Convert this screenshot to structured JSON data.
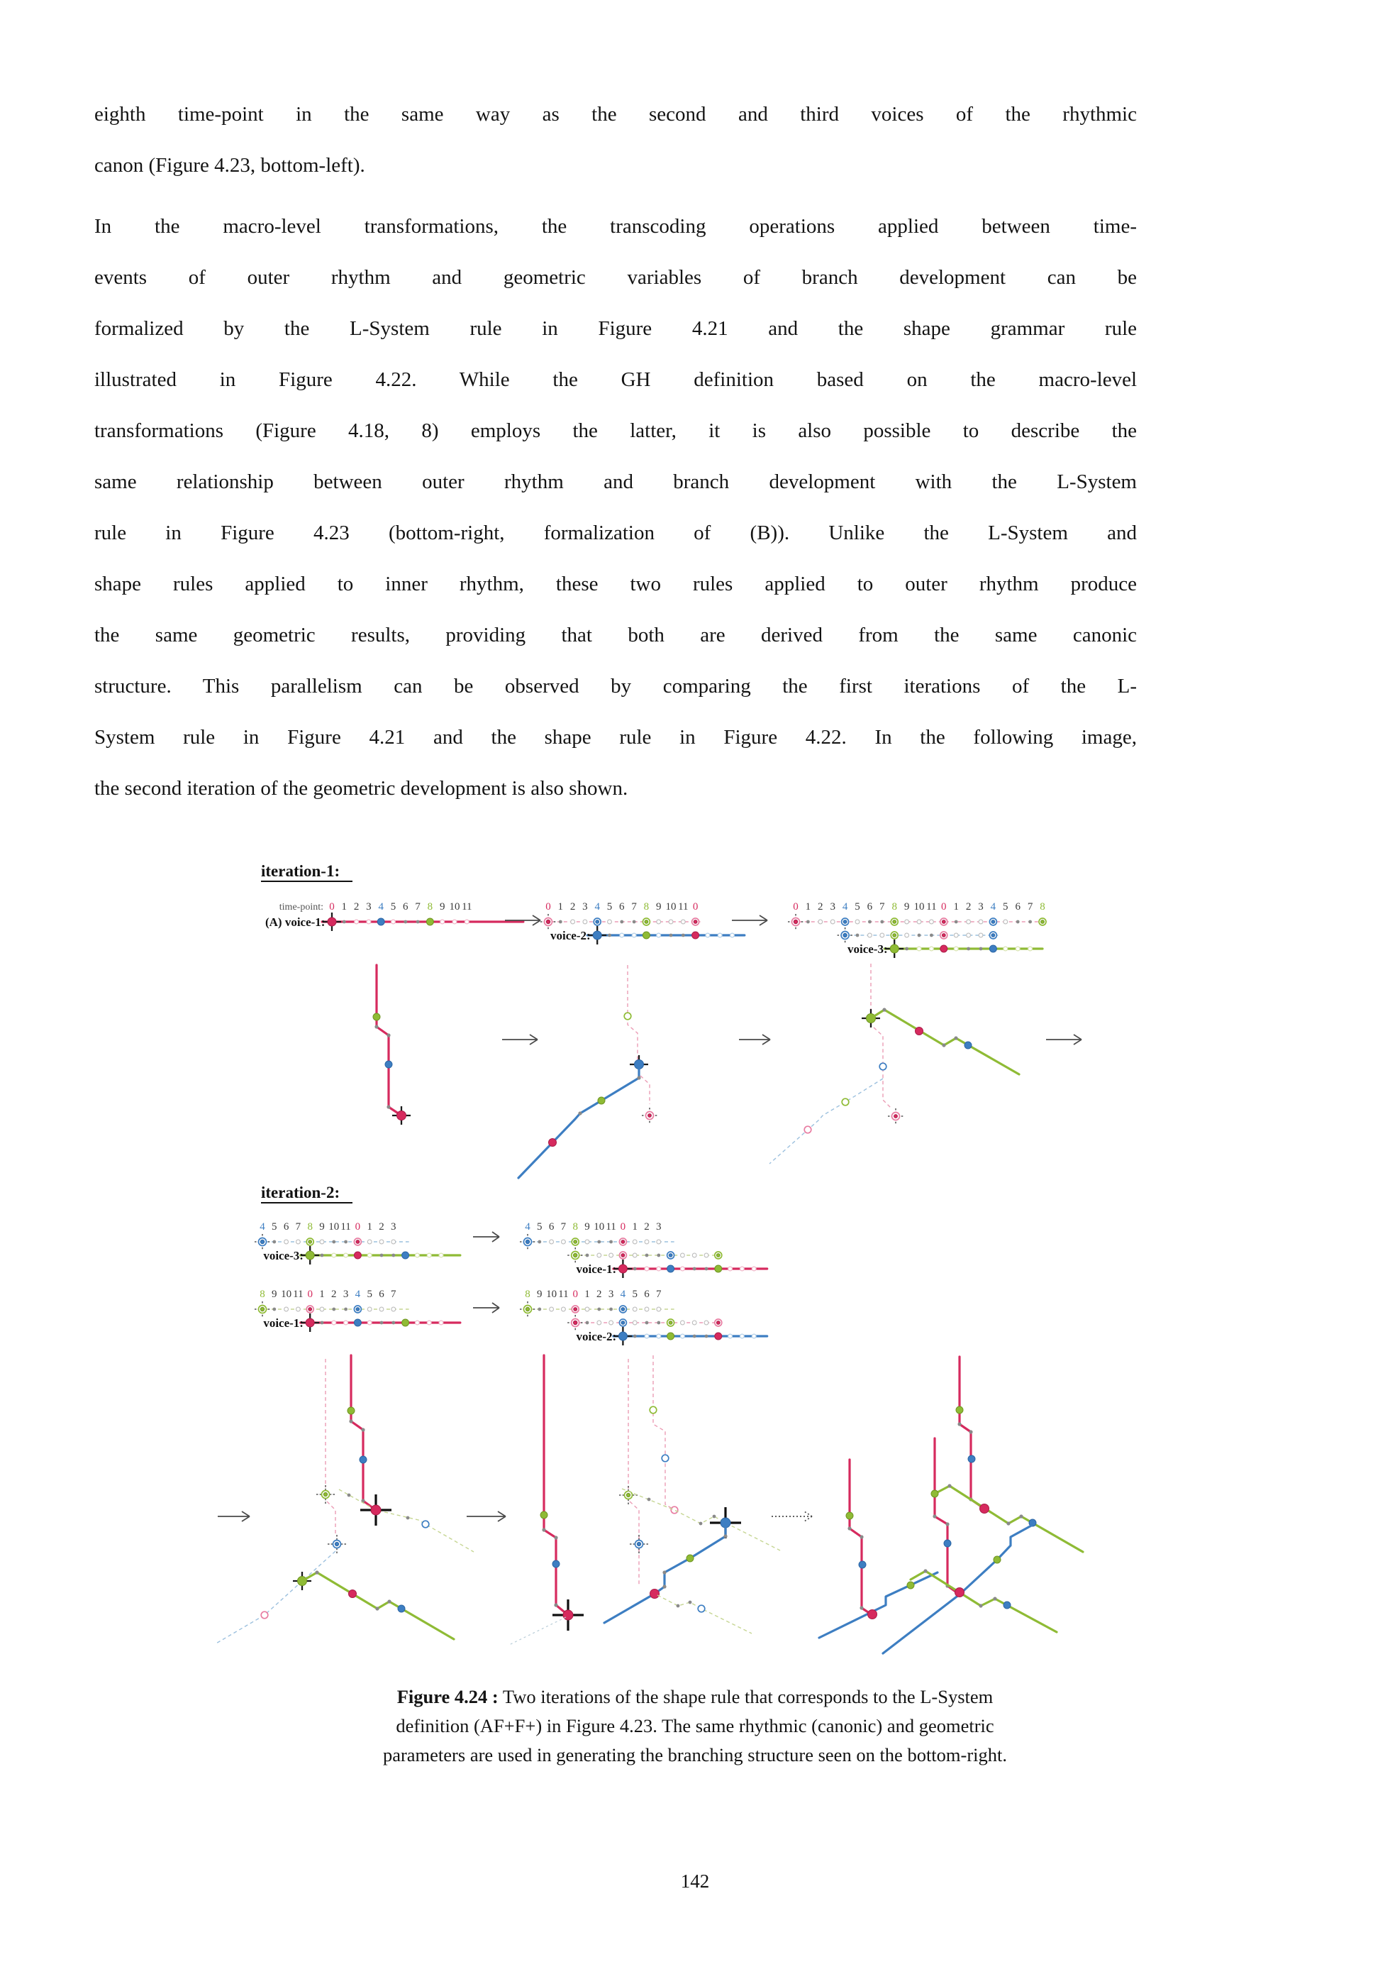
{
  "document": {
    "para1_lines": [
      "eighth time-point in the same way as the second and third voices of the rhythmic",
      "canon (Figure 4.23, bottom-left)."
    ],
    "para2_lines": [
      "In the macro-level transformations, the transcoding operations applied between time-",
      "events of outer rhythm and geometric variables of branch development can be",
      "formalized by the L-System rule in Figure 4.21 and the shape grammar rule",
      "illustrated in Figure 4.22. While the GH definition based on the macro-level",
      "transformations (Figure 4.18, 8) employs the latter, it is also possible to describe the",
      "same relationship between outer rhythm and branch development with the L-System",
      "rule in Figure 4.23 (bottom-right, formalization of (B)). Unlike the L-System and",
      "shape rules applied to inner rhythm, these two rules applied to outer rhythm produce",
      "the same geometric results, providing that both are derived from the same canonic",
      "structure. This parallelism can be observed by comparing the first iterations of the L-",
      "System rule in Figure 4.21 and the shape rule in Figure 4.22. In the following image,",
      "the second iteration of the geometric development is also shown."
    ],
    "caption": {
      "bold": "Figure 4.24 :",
      "line1_rest": " Two iterations of the shape rule that corresponds to the L-System",
      "line2": "definition (AF+F+) in Figure 4.23. The same rhythmic (canonic) and geometric",
      "line3": "parameters are used in generating the branching structure seen on the bottom-right.",
      "figure_number": "4.24"
    },
    "page_number": "142"
  },
  "figure": {
    "iteration1_label": "iteration-1:",
    "iteration2_label": "iteration-2:",
    "colors": {
      "crimson": "#d62a5e",
      "blue": "#3d7ec2",
      "green": "#8fbb35",
      "gray_dot": "#8a8a8a",
      "tick_dark": "#3a3a3a",
      "arrow": "#4a4a4a"
    },
    "rows": {
      "it1a": {
        "pre_label": "time-point:",
        "ticks": [
          "0",
          "1",
          "2",
          "3",
          "4",
          "5",
          "6",
          "7",
          "8",
          "9",
          "10",
          "11"
        ],
        "lines": [
          {
            "label": "(A) voice-1:",
            "ghost": false,
            "color": "crimson",
            "i0": 0,
            "g0": 0,
            "n": 11,
            "tail": 0.8,
            "head": 4.6,
            "level": 0
          }
        ]
      },
      "it1b": {
        "ticks": [
          "0",
          "1",
          "2",
          "3",
          "4",
          "5",
          "6",
          "7",
          "8",
          "9",
          "10",
          "11",
          "0"
        ],
        "lines": [
          {
            "ghost": true,
            "color": "crimson",
            "i0": 0,
            "g0": 0,
            "n": 12,
            "tail": 0.3,
            "head": 0.4,
            "level": 0
          },
          {
            "label": "voice-2:",
            "ghost": false,
            "color": "blue",
            "i0": 4,
            "g0": 4,
            "n": 11,
            "tail": 0.8,
            "head": 1.0,
            "level": 1
          }
        ]
      },
      "it1c": {
        "ticks": [
          "0",
          "1",
          "2",
          "3",
          "4",
          "5",
          "6",
          "7",
          "8",
          "9",
          "10",
          "11",
          "0",
          "1",
          "2",
          "3",
          "4",
          "5",
          "6",
          "7",
          "8"
        ],
        "lines": [
          {
            "ghost": true,
            "color": "crimson",
            "i0": 0,
            "g0": 0,
            "n": 20,
            "tail": 0.3,
            "head": 0.4,
            "level": 0
          },
          {
            "ghost": true,
            "color": "blue",
            "i0": 4,
            "g0": 4,
            "n": 12,
            "tail": 0.3,
            "head": 0.4,
            "level": 1
          },
          {
            "label": "voice-3:",
            "ghost": false,
            "color": "green",
            "i0": 8,
            "g0": 8,
            "n": 11,
            "tail": 0.8,
            "head": 1.0,
            "level": 2
          }
        ]
      },
      "r1l": {
        "ticks": [
          "4",
          "5",
          "6",
          "7",
          "8",
          "9",
          "10",
          "11",
          "0",
          "1",
          "2",
          "3"
        ],
        "lines": [
          {
            "ghost": true,
            "color": "blue",
            "i0": 0,
            "g0": 4,
            "n": 11,
            "tail": 0.3,
            "head": 1.3,
            "level": 0
          },
          {
            "label": "voice-3:",
            "ghost": false,
            "color": "green",
            "i0": 4,
            "g0": 8,
            "n": 11,
            "tail": 0.8,
            "head": 1.6,
            "level": 1
          }
        ]
      },
      "r1r": {
        "ticks": [
          "4",
          "5",
          "6",
          "7",
          "8",
          "9",
          "10",
          "11",
          "0",
          "1",
          "2",
          "3"
        ],
        "lines": [
          {
            "ghost": true,
            "color": "blue",
            "i0": 0,
            "g0": 4,
            "n": 11,
            "tail": 0.3,
            "head": 1.3,
            "level": 0
          },
          {
            "ghost": true,
            "color": "green",
            "i0": 4,
            "g0": 8,
            "n": 12,
            "tail": 0.3,
            "head": 0.4,
            "level": 1
          },
          {
            "label": "voice-1:",
            "ghost": false,
            "color": "crimson",
            "i0": 8,
            "g0": 12,
            "n": 11,
            "tail": 0.8,
            "head": 1.1,
            "level": 2
          }
        ]
      },
      "r2l": {
        "ticks": [
          "8",
          "9",
          "10",
          "11",
          "0",
          "1",
          "2",
          "3",
          "4",
          "5",
          "6",
          "7"
        ],
        "lines": [
          {
            "ghost": true,
            "color": "green",
            "i0": 0,
            "g0": 8,
            "n": 11,
            "tail": 0.3,
            "head": 1.3,
            "level": 0
          },
          {
            "label": "voice-1:",
            "ghost": false,
            "color": "crimson",
            "i0": 4,
            "g0": 12,
            "n": 11,
            "tail": 0.8,
            "head": 1.6,
            "level": 1
          }
        ]
      },
      "r2r": {
        "ticks": [
          "8",
          "9",
          "10",
          "11",
          "0",
          "1",
          "2",
          "3",
          "4",
          "5",
          "6",
          "7"
        ],
        "lines": [
          {
            "ghost": true,
            "color": "green",
            "i0": 0,
            "g0": 8,
            "n": 11,
            "tail": 0.3,
            "head": 1.3,
            "level": 0
          },
          {
            "ghost": true,
            "color": "crimson",
            "i0": 4,
            "g0": 12,
            "n": 12,
            "tail": 0.3,
            "head": 0.4,
            "level": 1
          },
          {
            "label": "voice-2:",
            "ghost": false,
            "color": "blue",
            "i0": 8,
            "g0": 16,
            "n": 11,
            "tail": 0.8,
            "head": 1.1,
            "level": 2
          }
        ]
      }
    }
  }
}
